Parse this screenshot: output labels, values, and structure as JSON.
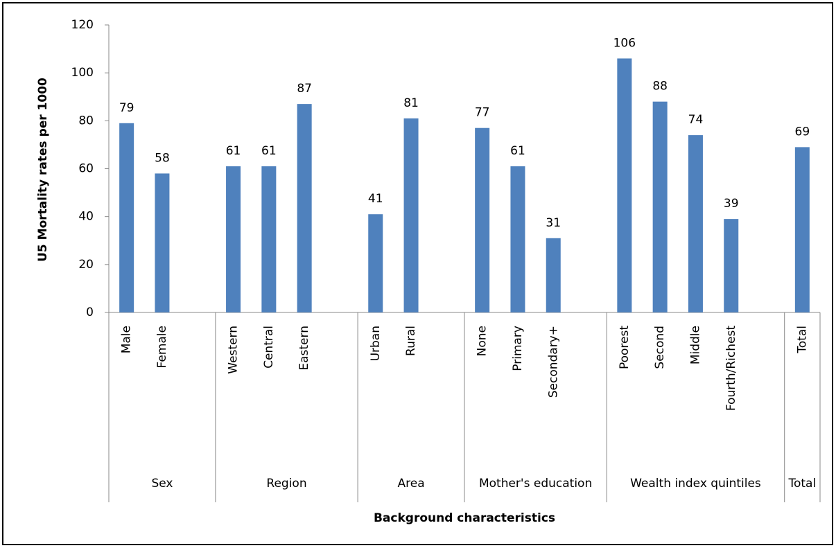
{
  "chart_data": {
    "type": "bar",
    "xlabel": "Background characteristics",
    "ylabel": "U5 Mortality rates per 1000",
    "categories": [
      "Male",
      "Female",
      "Western",
      "Central",
      "Eastern",
      "Urban",
      "Rural",
      "None",
      "Primary",
      "Secondary+",
      "Poorest",
      "Second",
      "Middle",
      "Fourth/Richest",
      "Total"
    ],
    "values": [
      79,
      58,
      61,
      61,
      87,
      41,
      81,
      77,
      61,
      31,
      106,
      88,
      74,
      39,
      69
    ],
    "groups": [
      {
        "label": "Sex",
        "count": 2
      },
      {
        "label": "Region",
        "count": 3
      },
      {
        "label": "Area",
        "count": 2
      },
      {
        "label": "Mother's education",
        "count": 3
      },
      {
        "label": "Wealth index quintiles",
        "count": 4
      },
      {
        "label": "Total",
        "count": 1
      }
    ],
    "color": "#4f81bd",
    "ylim": [
      0,
      120
    ],
    "yticks": [
      0,
      20,
      40,
      60,
      80,
      100,
      120
    ],
    "grid": false
  }
}
